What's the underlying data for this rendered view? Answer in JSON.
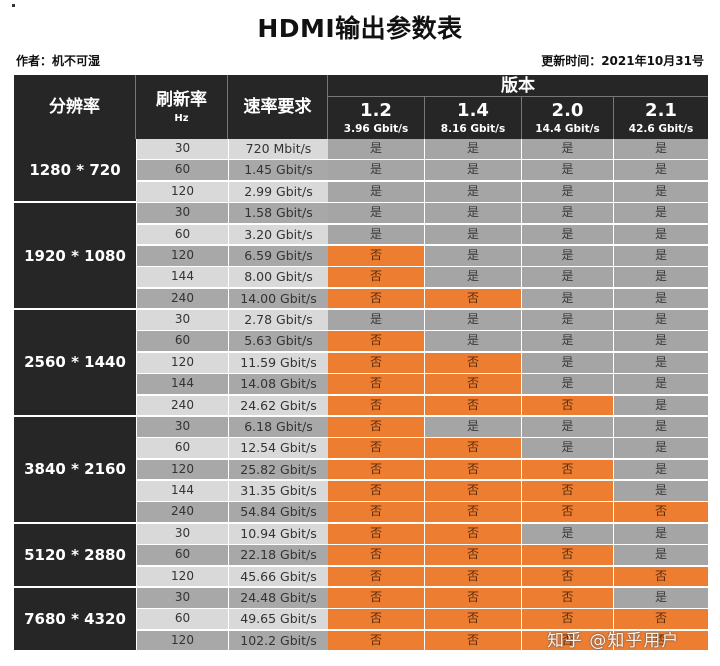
{
  "header": {
    "title": "HDMI输出参数表",
    "author": "作者：机不可湿",
    "updated": "更新时间：2021年10月31号"
  },
  "table": {
    "columns": {
      "resolution": "分辨率",
      "refresh": "刷新率",
      "refresh_unit": "Hz",
      "rate": "速率要求",
      "version_group": "版本"
    },
    "versions": [
      {
        "name": "1.2",
        "bandwidth": "3.96 Gbit/s"
      },
      {
        "name": "1.4",
        "bandwidth": "8.16 Gbit/s"
      },
      {
        "name": "2.0",
        "bandwidth": "14.4 Gbit/s"
      },
      {
        "name": "2.1",
        "bandwidth": "42.6 Gbit/s"
      }
    ],
    "groups": [
      {
        "resolution": "1280 * 720",
        "rows": [
          {
            "hz": "30",
            "rate": "720 Mbit/s",
            "support": [
              "是",
              "是",
              "是",
              "是"
            ]
          },
          {
            "hz": "60",
            "rate": "1.45 Gbit/s",
            "support": [
              "是",
              "是",
              "是",
              "是"
            ]
          },
          {
            "hz": "120",
            "rate": "2.99 Gbit/s",
            "support": [
              "是",
              "是",
              "是",
              "是"
            ]
          }
        ]
      },
      {
        "resolution": "1920 * 1080",
        "rows": [
          {
            "hz": "30",
            "rate": "1.58 Gbit/s",
            "support": [
              "是",
              "是",
              "是",
              "是"
            ]
          },
          {
            "hz": "60",
            "rate": "3.20 Gbit/s",
            "support": [
              "是",
              "是",
              "是",
              "是"
            ]
          },
          {
            "hz": "120",
            "rate": "6.59 Gbit/s",
            "support": [
              "否",
              "是",
              "是",
              "是"
            ]
          },
          {
            "hz": "144",
            "rate": "8.00 Gbit/s",
            "support": [
              "否",
              "是",
              "是",
              "是"
            ]
          },
          {
            "hz": "240",
            "rate": "14.00 Gbit/s",
            "support": [
              "否",
              "否",
              "是",
              "是"
            ]
          }
        ]
      },
      {
        "resolution": "2560 * 1440",
        "rows": [
          {
            "hz": "30",
            "rate": "2.78 Gbit/s",
            "support": [
              "是",
              "是",
              "是",
              "是"
            ]
          },
          {
            "hz": "60",
            "rate": "5.63 Gbit/s",
            "support": [
              "否",
              "是",
              "是",
              "是"
            ]
          },
          {
            "hz": "120",
            "rate": "11.59 Gbit/s",
            "support": [
              "否",
              "否",
              "是",
              "是"
            ]
          },
          {
            "hz": "144",
            "rate": "14.08 Gbit/s",
            "support": [
              "否",
              "否",
              "是",
              "是"
            ]
          },
          {
            "hz": "240",
            "rate": "24.62 Gbit/s",
            "support": [
              "否",
              "否",
              "否",
              "是"
            ]
          }
        ]
      },
      {
        "resolution": "3840 * 2160",
        "rows": [
          {
            "hz": "30",
            "rate": "6.18 Gbit/s",
            "support": [
              "否",
              "是",
              "是",
              "是"
            ]
          },
          {
            "hz": "60",
            "rate": "12.54 Gbit/s",
            "support": [
              "否",
              "否",
              "是",
              "是"
            ]
          },
          {
            "hz": "120",
            "rate": "25.82 Gbit/s",
            "support": [
              "否",
              "否",
              "否",
              "是"
            ]
          },
          {
            "hz": "144",
            "rate": "31.35 Gbit/s",
            "support": [
              "否",
              "否",
              "否",
              "是"
            ]
          },
          {
            "hz": "240",
            "rate": "54.84 Gbit/s",
            "support": [
              "否",
              "否",
              "否",
              "否"
            ]
          }
        ]
      },
      {
        "resolution": "5120 * 2880",
        "rows": [
          {
            "hz": "30",
            "rate": "10.94 Gbit/s",
            "support": [
              "否",
              "否",
              "是",
              "是"
            ]
          },
          {
            "hz": "60",
            "rate": "22.18 Gbit/s",
            "support": [
              "否",
              "否",
              "否",
              "是"
            ]
          },
          {
            "hz": "120",
            "rate": "45.66 Gbit/s",
            "support": [
              "否",
              "否",
              "否",
              "否"
            ]
          }
        ]
      },
      {
        "resolution": "7680 * 4320",
        "rows": [
          {
            "hz": "30",
            "rate": "24.48 Gbit/s",
            "support": [
              "否",
              "否",
              "否",
              "是"
            ]
          },
          {
            "hz": "60",
            "rate": "49.65 Gbit/s",
            "support": [
              "否",
              "否",
              "否",
              "否"
            ]
          },
          {
            "hz": "120",
            "rate": "102.2 Gbit/s",
            "support": [
              "否",
              "否",
              "否",
              "否"
            ]
          }
        ]
      }
    ]
  },
  "colors": {
    "header_bg": "#262626",
    "supported": "#a5a5a5",
    "unsupported": "#ed7d31",
    "row_light": "#d9d9d9",
    "row_dark": "#a8a8a8"
  },
  "watermark": "知乎 @知乎用户"
}
